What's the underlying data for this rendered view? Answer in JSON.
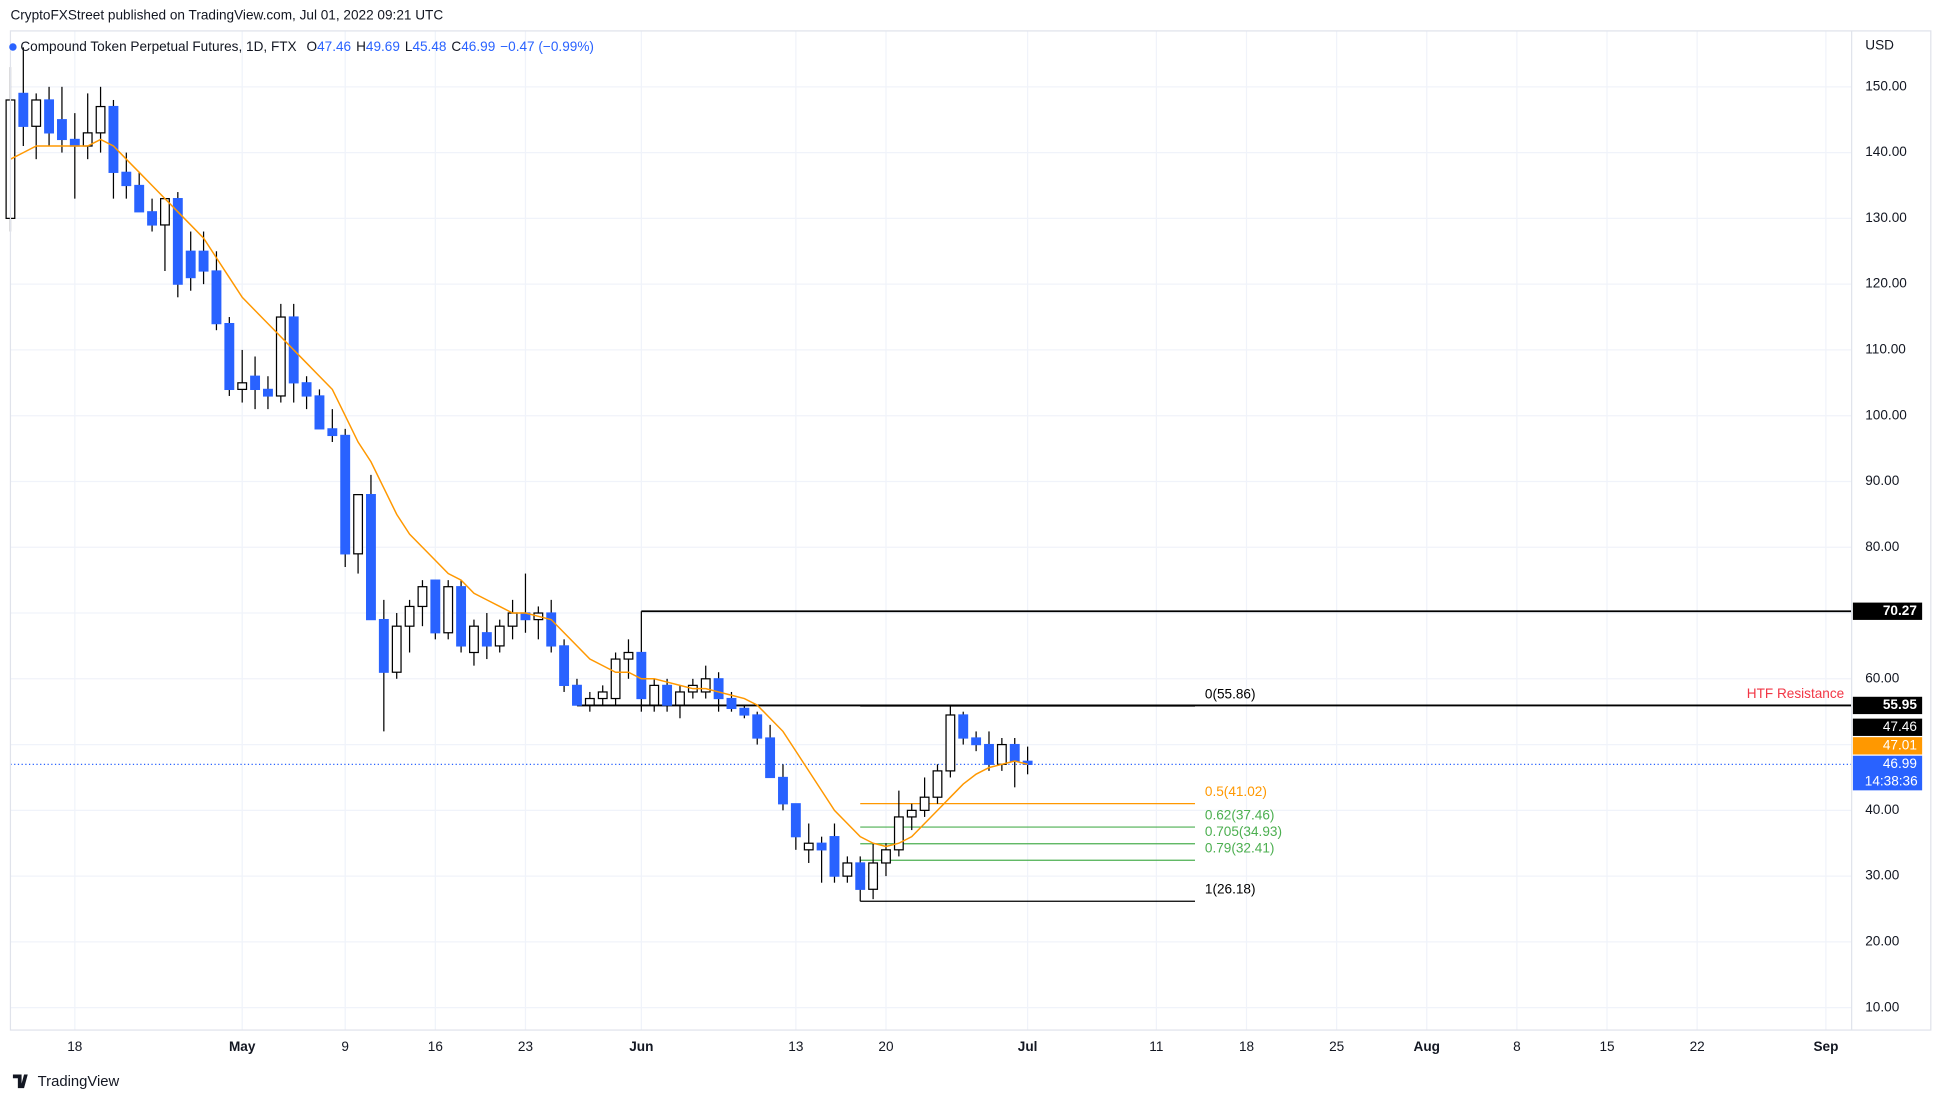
{
  "chart_data": {
    "type": "candlestick",
    "published": "CryptoFXStreet published on TradingView.com, Jul 01, 2022 09:21 UTC",
    "title": "Compound Token Perpetual Futures, 1D, FTX",
    "ohlc_legend": [
      {
        "label": "O",
        "value": 47.46
      },
      {
        "label": "H",
        "value": 49.69
      },
      {
        "label": "L",
        "value": 45.48
      },
      {
        "label": "C",
        "value": 46.99
      }
    ],
    "change": "−0.47 (−0.99%)",
    "currency": "USD",
    "footer": "TradingView",
    "up_color": "#ffffff",
    "down_color": "#2962ff",
    "wick_color": "#000000",
    "x": [
      "2022-04-13",
      "2022-04-14",
      "2022-04-15",
      "2022-04-16",
      "2022-04-17",
      "2022-04-18",
      "2022-04-19",
      "2022-04-20",
      "2022-04-21",
      "2022-04-22",
      "2022-04-23",
      "2022-04-24",
      "2022-04-25",
      "2022-04-26",
      "2022-04-27",
      "2022-04-28",
      "2022-04-29",
      "2022-04-30",
      "2022-05-01",
      "2022-05-02",
      "2022-05-03",
      "2022-05-04",
      "2022-05-05",
      "2022-05-06",
      "2022-05-07",
      "2022-05-08",
      "2022-05-09",
      "2022-05-10",
      "2022-05-11",
      "2022-05-12",
      "2022-05-13",
      "2022-05-14",
      "2022-05-15",
      "2022-05-16",
      "2022-05-17",
      "2022-05-18",
      "2022-05-19",
      "2022-05-20",
      "2022-05-21",
      "2022-05-22",
      "2022-05-23",
      "2022-05-24",
      "2022-05-25",
      "2022-05-26",
      "2022-05-27",
      "2022-05-28",
      "2022-05-29",
      "2022-05-30",
      "2022-05-31",
      "2022-06-01",
      "2022-06-02",
      "2022-06-03",
      "2022-06-04",
      "2022-06-05",
      "2022-06-06",
      "2022-06-07",
      "2022-06-08",
      "2022-06-09",
      "2022-06-10",
      "2022-06-11",
      "2022-06-12",
      "2022-06-13",
      "2022-06-14",
      "2022-06-15",
      "2022-06-16",
      "2022-06-17",
      "2022-06-18",
      "2022-06-19",
      "2022-06-20",
      "2022-06-21",
      "2022-06-22",
      "2022-06-23",
      "2022-06-24",
      "2022-06-25",
      "2022-06-26",
      "2022-06-27",
      "2022-06-28",
      "2022-06-29",
      "2022-06-30",
      "2022-07-01"
    ],
    "open": [
      130,
      149,
      144,
      148,
      145,
      142,
      141,
      143,
      147,
      137,
      135,
      131,
      129,
      133,
      125,
      125,
      122,
      114,
      104,
      106,
      104,
      103,
      115,
      105,
      103,
      98,
      97,
      79,
      88,
      69,
      61,
      68,
      71,
      75,
      67,
      74,
      64,
      67,
      65,
      68,
      70,
      69,
      70,
      65,
      59,
      56,
      57,
      57,
      63,
      64,
      56,
      59,
      56,
      58,
      58,
      60,
      57,
      55.5,
      54.5,
      51,
      45,
      41,
      34,
      35,
      36,
      30,
      32,
      28,
      32,
      34,
      39,
      40,
      42,
      46,
      54.5,
      51,
      50,
      47,
      50,
      47.46
    ],
    "high": [
      153,
      156,
      149,
      150,
      150,
      146,
      149,
      150,
      148,
      140,
      137,
      133,
      133,
      134,
      128,
      128,
      125,
      115,
      110,
      109,
      106,
      117,
      117,
      106,
      104,
      101,
      98,
      88,
      91,
      72,
      70,
      72,
      75,
      75,
      75,
      75,
      69,
      70,
      69,
      72,
      76,
      71,
      72,
      66,
      60,
      58,
      59,
      64,
      66,
      70.27,
      60,
      60,
      59,
      60,
      62,
      61,
      58,
      56,
      55,
      53,
      47,
      41,
      38,
      36,
      38,
      33,
      33,
      35,
      35,
      43,
      41,
      45,
      47,
      55.86,
      55,
      52,
      52,
      51,
      51,
      49.69
    ],
    "low": [
      128,
      141,
      139,
      141,
      140,
      133,
      139,
      140,
      133,
      133,
      131,
      128,
      122,
      118,
      119,
      120,
      113,
      103,
      102,
      101,
      101,
      102,
      102,
      101,
      98,
      96,
      77,
      76,
      69,
      52,
      60,
      64,
      68,
      66,
      66,
      64,
      62,
      63,
      64,
      66,
      67,
      66,
      64,
      58,
      56,
      55,
      56,
      56,
      60,
      55,
      55,
      55,
      54,
      57,
      57,
      55,
      55,
      54,
      50,
      45,
      40,
      34,
      32,
      29,
      29,
      29,
      26.18,
      26.5,
      30,
      33,
      37,
      39,
      41,
      45,
      50,
      49,
      46,
      46,
      43.5,
      45.48
    ],
    "close": [
      148,
      144,
      148,
      143,
      142,
      141,
      143,
      147,
      137,
      135,
      131,
      129,
      133,
      120,
      121,
      122,
      114,
      104,
      105,
      104,
      103,
      115,
      105,
      103,
      98,
      97,
      79,
      88,
      69,
      61,
      68,
      71,
      74,
      67,
      74,
      65,
      68,
      65,
      68,
      70,
      69,
      70,
      65,
      59,
      56,
      57,
      58,
      63,
      64,
      57,
      59,
      56,
      58,
      59,
      60,
      57,
      55.5,
      54.5,
      51,
      45,
      41,
      36,
      35,
      34,
      30,
      32,
      28,
      32,
      34,
      39,
      40,
      42,
      46,
      54.5,
      51,
      50,
      47,
      50,
      47.46,
      46.99
    ],
    "moving_average": {
      "color": "#ff9800",
      "values": [
        139,
        140,
        141,
        141,
        141,
        141,
        141,
        142,
        141,
        139,
        137,
        135,
        133,
        131,
        129,
        127,
        124,
        121,
        118,
        116,
        114,
        112,
        110,
        108,
        106,
        104,
        100,
        96,
        93,
        89,
        85,
        82,
        80,
        78,
        76,
        75,
        73,
        72,
        71,
        70,
        70,
        69.5,
        69,
        67,
        65,
        63,
        62,
        61,
        61,
        60,
        60,
        59.5,
        59,
        58.5,
        58.5,
        58,
        57.5,
        57,
        56,
        54,
        52,
        49,
        46,
        43,
        40,
        38,
        36,
        35,
        34.5,
        35,
        36,
        38,
        40,
        42,
        44,
        45.5,
        46.5,
        47,
        47.5,
        47.01
      ]
    },
    "xlim": [
      "2022-04-13",
      "2022-09-03"
    ],
    "xticks": [
      {
        "value": "2022-04-18",
        "label": "18"
      },
      {
        "value": "2022-05-01",
        "label": "May"
      },
      {
        "value": "2022-05-09",
        "label": "9"
      },
      {
        "value": "2022-05-16",
        "label": "16"
      },
      {
        "value": "2022-05-23",
        "label": "23"
      },
      {
        "value": "2022-06-01",
        "label": "Jun"
      },
      {
        "value": "2022-06-13",
        "label": "13"
      },
      {
        "value": "2022-06-20",
        "label": "20"
      },
      {
        "value": "2022-07-01",
        "label": "Jul"
      },
      {
        "value": "2022-07-11",
        "label": "11"
      },
      {
        "value": "2022-07-18",
        "label": "18"
      },
      {
        "value": "2022-07-25",
        "label": "25"
      },
      {
        "value": "2022-08-01",
        "label": "Aug"
      },
      {
        "value": "2022-08-08",
        "label": "8"
      },
      {
        "value": "2022-08-15",
        "label": "15"
      },
      {
        "value": "2022-08-22",
        "label": "22"
      },
      {
        "value": "2022-09-01",
        "label": "Sep"
      }
    ],
    "ylim": [
      6.6,
      158.5
    ],
    "yticks": [
      {
        "value": 10,
        "label": "10.00"
      },
      {
        "value": 20,
        "label": "20.00"
      },
      {
        "value": 30,
        "label": "30.00"
      },
      {
        "value": 40,
        "label": "40.00"
      },
      {
        "value": 50,
        "label": "50.00"
      },
      {
        "value": 60,
        "label": "60.00"
      },
      {
        "value": 70,
        "label": "70.00"
      },
      {
        "value": 80,
        "label": "80.00"
      },
      {
        "value": 90,
        "label": "90.00"
      },
      {
        "value": 100,
        "label": "100.00"
      },
      {
        "value": 110,
        "label": "110.00"
      },
      {
        "value": 120,
        "label": "120.00"
      },
      {
        "value": 130,
        "label": "130.00"
      },
      {
        "value": 140,
        "label": "140.00"
      },
      {
        "value": 150,
        "label": "150.00"
      }
    ],
    "grid": true,
    "horizontal_lines": [
      {
        "value": 70.27,
        "from": "2022-06-01"
      },
      {
        "value": 55.95,
        "from": "2022-05-27",
        "annotation": "HTF Resistance",
        "annotation_color": "#f23645"
      }
    ],
    "fibonacci": {
      "from": "2022-06-18",
      "to": "2022-07-14",
      "levels": [
        {
          "value": 55.86,
          "label": "0(55.86)",
          "color": "#000000"
        },
        {
          "value": 41.02,
          "label": "0.5(41.02)",
          "color": "#ff9800"
        },
        {
          "value": 37.46,
          "label": "0.62(37.46)",
          "color": "#4caf50"
        },
        {
          "value": 34.93,
          "label": "0.705(34.93)",
          "color": "#4caf50"
        },
        {
          "value": 32.41,
          "label": "0.79(32.41)",
          "color": "#4caf50"
        },
        {
          "value": 26.18,
          "label": "1(26.18)",
          "color": "#000000"
        }
      ]
    },
    "axis_tags": [
      {
        "value": 46.99,
        "color": "#2962ff",
        "countdown": "14:38:36"
      },
      {
        "value": 47.01,
        "color": "#ff9800"
      },
      {
        "value": 47.46,
        "color": "#000000"
      }
    ]
  }
}
